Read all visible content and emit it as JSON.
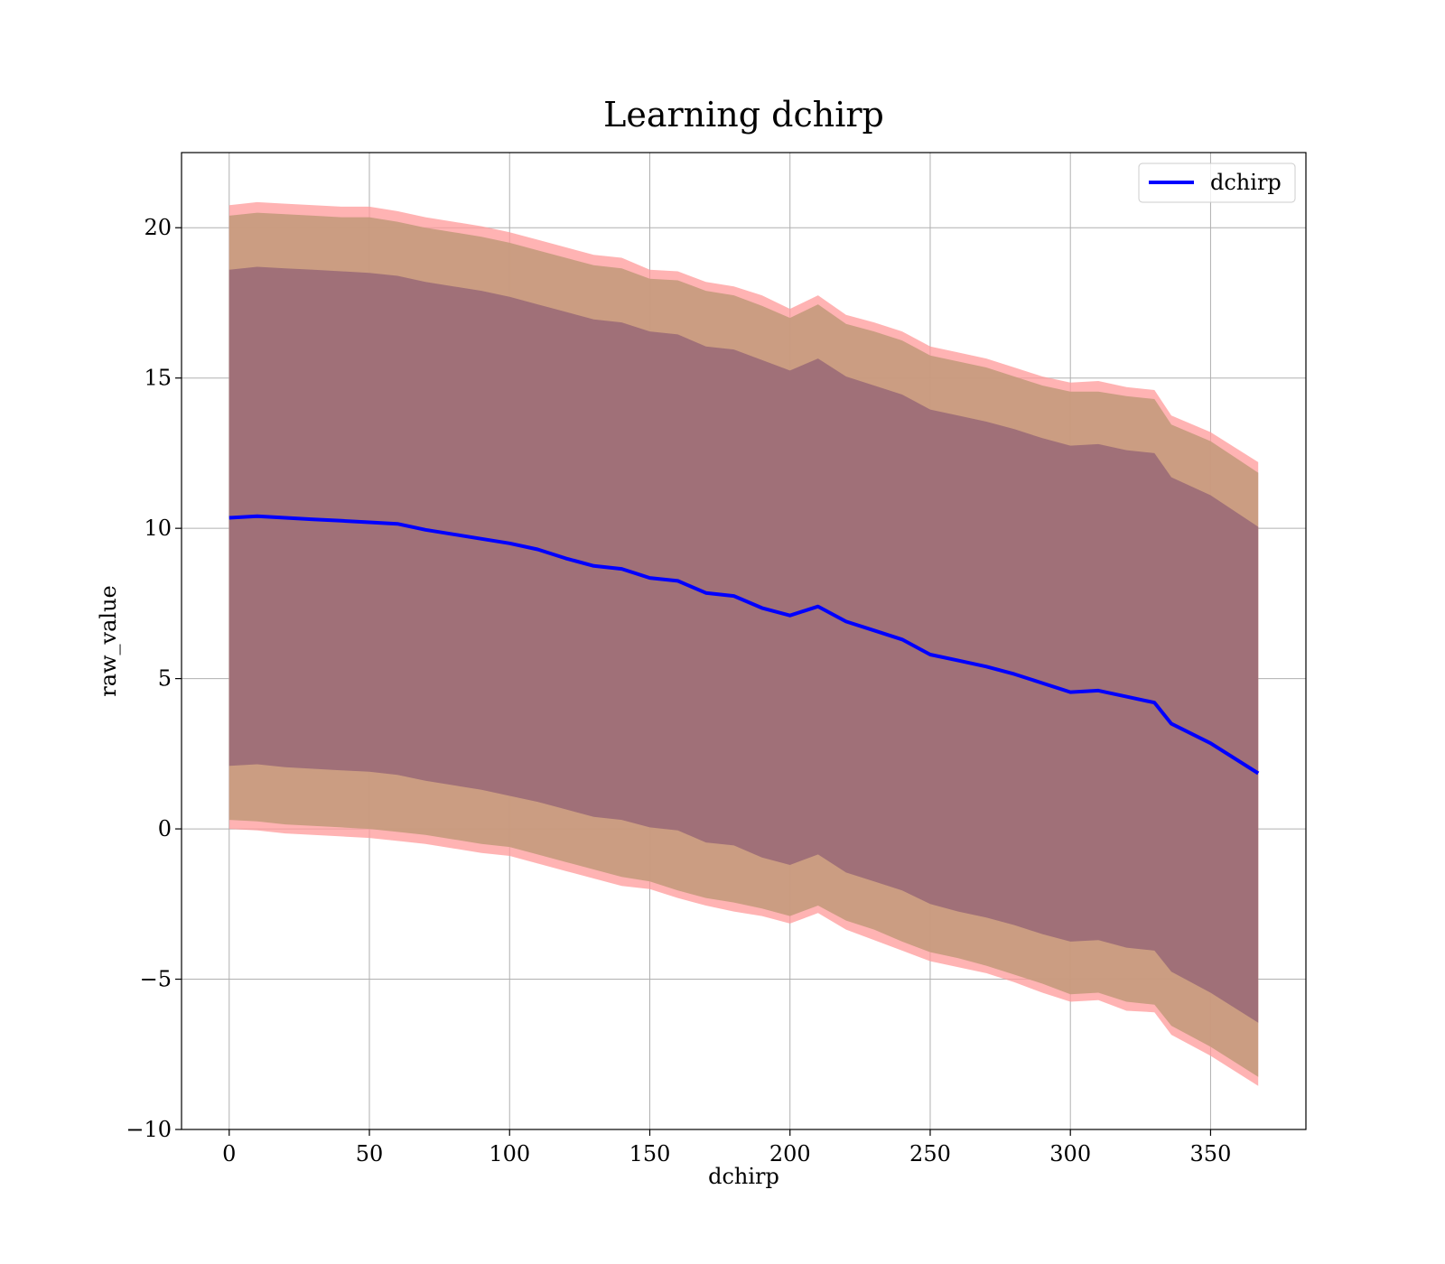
{
  "chart_data": {
    "type": "area",
    "title": "Learning dchirp",
    "xlabel": "dchirp",
    "ylabel": "raw_value",
    "xlim": [
      -17,
      384
    ],
    "ylim": [
      -10,
      22.5
    ],
    "xticks": [
      0,
      50,
      100,
      150,
      200,
      250,
      300,
      350
    ],
    "yticks": [
      -10,
      -5,
      0,
      5,
      10,
      15,
      20
    ],
    "xtick_labels": [
      "0",
      "50",
      "100",
      "150",
      "200",
      "250",
      "300",
      "350"
    ],
    "ytick_labels": [
      "−10",
      "−5",
      "0",
      "5",
      "10",
      "15",
      "20"
    ],
    "grid": true,
    "legend": {
      "position": "top-right",
      "entries": [
        "dchirp"
      ]
    },
    "colors": {
      "line": "#0000ff",
      "band_outer": "#ff9a9a",
      "band_middle": "#c59a7c",
      "band_inner": "#a07078"
    },
    "x": [
      0,
      10,
      20,
      30,
      40,
      50,
      60,
      70,
      80,
      90,
      100,
      110,
      120,
      130,
      140,
      150,
      160,
      170,
      180,
      190,
      200,
      210,
      220,
      230,
      240,
      250,
      260,
      270,
      280,
      290,
      300,
      310,
      320,
      330,
      336,
      350,
      367
    ],
    "series": [
      {
        "name": "dchirp",
        "values": [
          10.35,
          10.4,
          10.35,
          10.3,
          10.25,
          10.2,
          10.15,
          9.95,
          9.8,
          9.65,
          9.5,
          9.3,
          9.0,
          8.75,
          8.65,
          8.35,
          8.25,
          7.85,
          7.75,
          7.35,
          7.1,
          7.4,
          6.9,
          6.6,
          6.3,
          5.8,
          5.6,
          5.4,
          5.15,
          4.85,
          4.55,
          4.6,
          4.4,
          4.2,
          3.5,
          2.85,
          1.85
        ]
      }
    ],
    "bands": [
      {
        "lower": [
          0.0,
          -0.05,
          -0.15,
          -0.2,
          -0.25,
          -0.3,
          -0.4,
          -0.5,
          -0.65,
          -0.8,
          -0.9,
          -1.15,
          -1.4,
          -1.65,
          -1.9,
          -2.0,
          -2.3,
          -2.55,
          -2.75,
          -2.9,
          -3.15,
          -2.8,
          -3.35,
          -3.7,
          -4.05,
          -4.4,
          -4.6,
          -4.8,
          -5.1,
          -5.45,
          -5.75,
          -5.7,
          -6.05,
          -6.1,
          -6.85,
          -7.55,
          -8.55
        ],
        "upper": [
          20.75,
          20.85,
          20.8,
          20.75,
          20.7,
          20.7,
          20.55,
          20.35,
          20.2,
          20.05,
          19.85,
          19.6,
          19.35,
          19.1,
          19.0,
          18.6,
          18.55,
          18.2,
          18.05,
          17.75,
          17.3,
          17.75,
          17.1,
          16.85,
          16.55,
          16.05,
          15.85,
          15.65,
          15.35,
          15.05,
          14.85,
          14.9,
          14.7,
          14.6,
          13.75,
          13.2,
          12.2
        ]
      },
      {
        "lower": [
          0.3,
          0.25,
          0.15,
          0.1,
          0.05,
          0.0,
          -0.1,
          -0.2,
          -0.35,
          -0.5,
          -0.6,
          -0.85,
          -1.1,
          -1.35,
          -1.6,
          -1.75,
          -2.05,
          -2.3,
          -2.45,
          -2.65,
          -2.9,
          -2.55,
          -3.05,
          -3.35,
          -3.75,
          -4.1,
          -4.3,
          -4.55,
          -4.85,
          -5.15,
          -5.5,
          -5.45,
          -5.75,
          -5.85,
          -6.55,
          -7.25,
          -8.25
        ],
        "upper": [
          20.4,
          20.5,
          20.45,
          20.4,
          20.35,
          20.35,
          20.2,
          20.0,
          19.85,
          19.7,
          19.5,
          19.25,
          19.0,
          18.75,
          18.65,
          18.3,
          18.25,
          17.9,
          17.75,
          17.4,
          17.0,
          17.45,
          16.8,
          16.55,
          16.25,
          15.75,
          15.55,
          15.35,
          15.05,
          14.75,
          14.55,
          14.55,
          14.4,
          14.3,
          13.45,
          12.9,
          11.85
        ]
      },
      {
        "lower": [
          2.1,
          2.15,
          2.05,
          2.0,
          1.95,
          1.9,
          1.8,
          1.6,
          1.45,
          1.3,
          1.1,
          0.9,
          0.65,
          0.4,
          0.3,
          0.05,
          -0.05,
          -0.45,
          -0.55,
          -0.95,
          -1.2,
          -0.85,
          -1.45,
          -1.75,
          -2.05,
          -2.5,
          -2.75,
          -2.95,
          -3.2,
          -3.5,
          -3.75,
          -3.7,
          -3.95,
          -4.05,
          -4.75,
          -5.45,
          -6.45
        ],
        "upper": [
          18.6,
          18.7,
          18.65,
          18.6,
          18.55,
          18.5,
          18.4,
          18.2,
          18.05,
          17.9,
          17.7,
          17.45,
          17.2,
          16.95,
          16.85,
          16.55,
          16.45,
          16.05,
          15.95,
          15.6,
          15.25,
          15.65,
          15.05,
          14.75,
          14.45,
          13.95,
          13.75,
          13.55,
          13.3,
          13.0,
          12.75,
          12.8,
          12.6,
          12.5,
          11.7,
          11.1,
          10.05
        ]
      }
    ]
  }
}
